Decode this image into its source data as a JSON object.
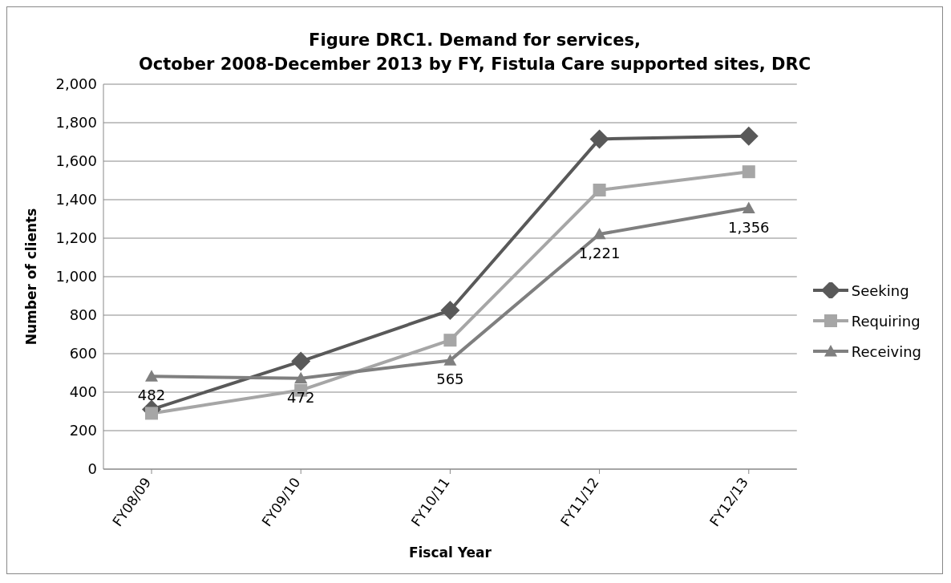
{
  "chart_data": {
    "type": "line",
    "title": "Figure DRC1. Demand for services,\nOctober 2008-December 2013 by FY, Fistula Care supported sites, DRC",
    "xlabel": "Fiscal Year",
    "ylabel": "Number of clients",
    "categories": [
      "FY08/09",
      "FY09/10",
      "FY10/11",
      "FY11/12",
      "FY12/13"
    ],
    "series": [
      {
        "name": "Seeking",
        "color": "#595959",
        "marker": "diamond",
        "values": [
          310,
          560,
          825,
          1715,
          1730
        ]
      },
      {
        "name": "Requiring",
        "color": "#a6a6a6",
        "marker": "square",
        "values": [
          290,
          410,
          670,
          1450,
          1545
        ]
      },
      {
        "name": "Receiving",
        "color": "#7f7f7f",
        "marker": "triangle",
        "values": [
          482,
          472,
          565,
          1221,
          1356
        ],
        "value_labels": [
          "482",
          "472",
          "565",
          "1,221",
          "1,356"
        ]
      }
    ],
    "ylim": [
      0,
      2000
    ],
    "yticks": [
      0,
      200,
      400,
      600,
      800,
      {
        "value": 1000,
        "label": "1,000"
      },
      {
        "value": 1200,
        "label": "1,200"
      },
      {
        "value": 1400,
        "label": "1,400"
      },
      {
        "value": 1600,
        "label": "1,600"
      },
      {
        "value": 1800,
        "label": "1,800"
      },
      {
        "value": 2000,
        "label": "2,000"
      }
    ],
    "grid": "y",
    "legend": "right",
    "line_style": "solid"
  }
}
